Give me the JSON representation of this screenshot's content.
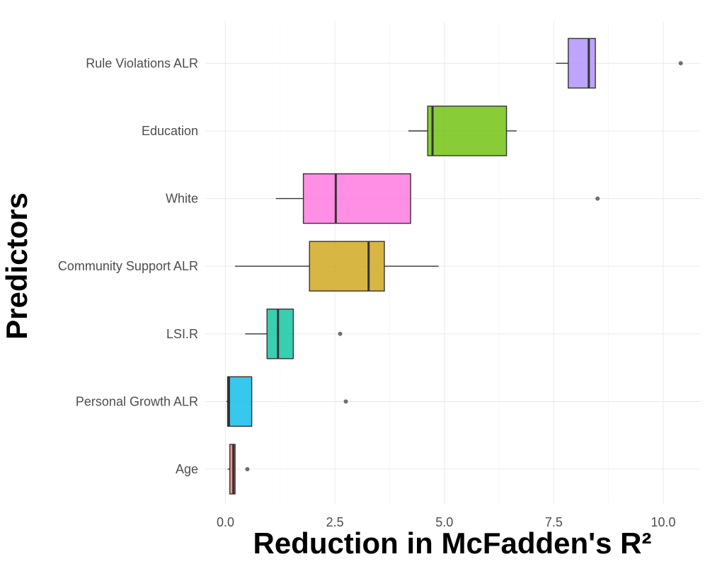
{
  "chart_data": {
    "type": "boxplot",
    "orientation": "horizontal",
    "xlabel": "Reduction in McFadden's R²",
    "ylabel": "Predictors",
    "xlim": [
      -0.6,
      11.2
    ],
    "x_ticks": [
      0.0,
      2.5,
      5.0,
      7.5,
      10.0
    ],
    "x_tick_labels": [
      "0.0",
      "2.5",
      "5.0",
      "7.5",
      "10.0"
    ],
    "grid": true,
    "legend": "none",
    "categories": [
      "Age",
      "Personal Growth ALR",
      "LSI.R",
      "Community Support ALR",
      "White",
      "Education",
      "Rule Violations ALR"
    ],
    "boxes": [
      {
        "category": "Age",
        "whisker_low": 0.05,
        "q1": 0.1,
        "median": 0.18,
        "q3": 0.22,
        "whisker_high": 0.22,
        "outliers": [
          0.5
        ],
        "color": "#F8766D"
      },
      {
        "category": "Personal Growth ALR",
        "whisker_low": 0.02,
        "q1": 0.05,
        "median": 0.08,
        "q3": 0.6,
        "whisker_high": 0.6,
        "outliers": [
          2.75
        ],
        "color": "#00B7E8"
      },
      {
        "category": "LSI.R",
        "whisker_low": 0.45,
        "q1": 0.95,
        "median": 1.2,
        "q3": 1.55,
        "whisker_high": 1.55,
        "outliers": [
          2.62
        ],
        "color": "#00C19A"
      },
      {
        "category": "Community Support ALR",
        "whisker_low": 0.22,
        "q1": 1.92,
        "median": 3.27,
        "q3": 3.63,
        "whisker_high": 4.87,
        "outliers": [],
        "color": "#CDA10F"
      },
      {
        "category": "White",
        "whisker_low": 1.15,
        "q1": 1.78,
        "median": 2.52,
        "q3": 4.23,
        "whisker_high": 4.23,
        "outliers": [
          8.5
        ],
        "color": "#FF6EDE"
      },
      {
        "category": "Education",
        "whisker_low": 4.18,
        "q1": 4.62,
        "median": 4.73,
        "q3": 6.42,
        "whisker_high": 6.65,
        "outliers": [],
        "color": "#67BE00"
      },
      {
        "category": "Rule Violations ALR",
        "whisker_low": 7.55,
        "q1": 7.83,
        "median": 8.3,
        "q3": 8.45,
        "whisker_high": 8.45,
        "outliers": [
          10.4
        ],
        "color": "#A98BFF"
      }
    ]
  }
}
